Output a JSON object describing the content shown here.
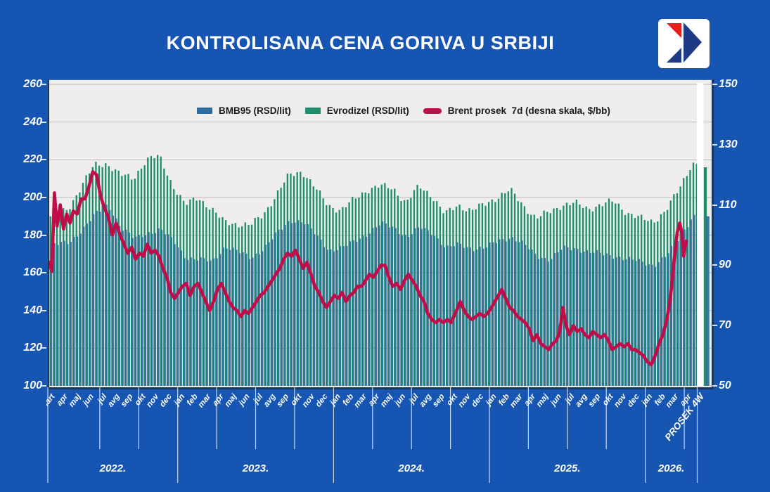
{
  "title": "KONTROLISANA CENA GORIVA U SRBIJI",
  "colors": {
    "background": "#1655b2",
    "plot_background": "#f0eeec",
    "gridline": "#bcbbb9",
    "axis_border": "#17375e",
    "axis_text": "#ffffff",
    "legend_text": "#1a1a1a",
    "bmb95_blue": "#2e6b9e",
    "evrodizel_green": "#1d8e6c",
    "brent_red": "#c20b49",
    "logo_red": "#e32119",
    "logo_blue": "#1f3a85"
  },
  "legend": [
    {
      "label": "BMB95 (RSD/lit)",
      "swatch": "bar",
      "color": "#2e6b9e"
    },
    {
      "label": "Evrodizel (RSD/lit)",
      "swatch": "bar",
      "color": "#1d8e6c"
    },
    {
      "label": "Brent prosek  7d (desna skala, $/bb)",
      "swatch": "line",
      "color": "#c20b49"
    }
  ],
  "chart_data": {
    "type": "combo",
    "title": "KONTROLISANA CENA GORIVA U SRBIJI",
    "grid": true,
    "legend_position": "top",
    "left_axis": {
      "unit": "RSD/lit",
      "min": 100,
      "max": 260,
      "step": 20,
      "ticks": [
        260,
        240,
        220,
        200,
        180,
        160,
        140,
        120,
        100
      ]
    },
    "right_axis": {
      "unit": "$/bb",
      "min": 50,
      "max": 150,
      "step": 20,
      "ticks": [
        150,
        130,
        110,
        90,
        70,
        50
      ]
    },
    "categories": [
      "mart",
      "apr",
      "maj",
      "jun",
      "jul",
      "avg",
      "sep",
      "okt",
      "nov",
      "dec",
      "jan",
      "feb",
      "mar",
      "apr",
      "maj",
      "jun",
      "jul",
      "avg",
      "sep",
      "okt",
      "nov",
      "dec",
      "jan",
      "feb",
      "mar",
      "apr",
      "maj",
      "jun",
      "jul",
      "avg",
      "sep",
      "okt",
      "nov",
      "dec",
      "jan",
      "feb",
      "mar",
      "apr",
      "maj",
      "jun",
      "jul",
      "avg",
      "sep",
      "okt",
      "nov",
      "dec",
      "jan",
      "feb",
      "mar",
      "apr",
      "PROSEK 4W"
    ],
    "years": [
      {
        "label": "2022.",
        "from": 0,
        "to": 10
      },
      {
        "label": "2023.",
        "from": 10,
        "to": 22
      },
      {
        "label": "2024.",
        "from": 22,
        "to": 34
      },
      {
        "label": "2025.",
        "from": 34,
        "to": 46
      },
      {
        "label": "2026.",
        "from": 46,
        "to": 50
      }
    ],
    "series": [
      {
        "name": "BMB95 (RSD/lit)",
        "type": "bar",
        "axis": "left",
        "color": "#2e6b9e",
        "monthly_values": [
          175,
          176,
          183,
          191,
          196,
          184,
          178,
          181,
          183,
          177,
          168,
          167,
          166,
          174,
          171,
          168,
          173,
          181,
          188,
          187,
          180,
          172,
          173,
          177,
          181,
          186,
          184,
          179,
          184,
          181,
          173,
          175,
          173,
          173,
          177,
          179,
          175,
          169,
          167,
          173,
          173,
          171,
          170,
          169,
          167,
          166,
          164,
          169,
          179,
          190,
          190
        ]
      },
      {
        "name": "Evrodizel (RSD/lit)",
        "type": "bar",
        "axis": "left",
        "color": "#1d8e6c",
        "monthly_values": [
          190,
          194,
          206,
          217,
          218,
          212,
          210,
          220,
          222,
          207,
          196,
          200,
          194,
          187,
          186,
          185,
          191,
          201,
          212,
          214,
          205,
          196,
          193,
          199,
          204,
          206,
          205,
          197,
          206,
          201,
          191,
          196,
          193,
          196,
          200,
          204,
          196,
          189,
          192,
          196,
          197,
          194,
          196,
          198,
          192,
          189,
          187,
          193,
          204,
          218,
          216
        ]
      },
      {
        "name": "Brent prosek  7d (desna skala, $/bb)",
        "type": "line",
        "axis": "right",
        "color": "#c20b49",
        "points_month_usd": [
          [
            0.0,
            91
          ],
          [
            0.2,
            88
          ],
          [
            0.4,
            114
          ],
          [
            0.6,
            103
          ],
          [
            0.85,
            110
          ],
          [
            1.1,
            102
          ],
          [
            1.35,
            107
          ],
          [
            1.6,
            104
          ],
          [
            1.85,
            108
          ],
          [
            2.15,
            107
          ],
          [
            2.45,
            112
          ],
          [
            2.75,
            112
          ],
          [
            3.05,
            116
          ],
          [
            3.35,
            121
          ],
          [
            3.65,
            120
          ],
          [
            3.95,
            113
          ],
          [
            4.25,
            109
          ],
          [
            4.55,
            106
          ],
          [
            4.85,
            100
          ],
          [
            5.15,
            104
          ],
          [
            5.45,
            100
          ],
          [
            5.75,
            97
          ],
          [
            6.05,
            94
          ],
          [
            6.35,
            96
          ],
          [
            6.65,
            92
          ],
          [
            6.95,
            94
          ],
          [
            7.25,
            93
          ],
          [
            7.55,
            97
          ],
          [
            7.85,
            94
          ],
          [
            8.15,
            95
          ],
          [
            8.45,
            93
          ],
          [
            8.75,
            89
          ],
          [
            9.05,
            86
          ],
          [
            9.35,
            81
          ],
          [
            9.65,
            79
          ],
          [
            9.95,
            81
          ],
          [
            10.25,
            83
          ],
          [
            10.55,
            84
          ],
          [
            10.85,
            80
          ],
          [
            11.15,
            83
          ],
          [
            11.45,
            84
          ],
          [
            11.75,
            81
          ],
          [
            12.05,
            78
          ],
          [
            12.35,
            75
          ],
          [
            12.65,
            78
          ],
          [
            12.95,
            82
          ],
          [
            13.25,
            84
          ],
          [
            13.55,
            81
          ],
          [
            13.85,
            78
          ],
          [
            14.15,
            76
          ],
          [
            14.45,
            75
          ],
          [
            14.75,
            73
          ],
          [
            15.05,
            75
          ],
          [
            15.35,
            74
          ],
          [
            15.65,
            76
          ],
          [
            15.95,
            78
          ],
          [
            16.25,
            80
          ],
          [
            16.55,
            81
          ],
          [
            16.85,
            83
          ],
          [
            17.15,
            85
          ],
          [
            17.45,
            87
          ],
          [
            17.75,
            89
          ],
          [
            18.05,
            92
          ],
          [
            18.35,
            94
          ],
          [
            18.65,
            93
          ],
          [
            18.95,
            95
          ],
          [
            19.25,
            92
          ],
          [
            19.55,
            89
          ],
          [
            19.85,
            91
          ],
          [
            20.15,
            87
          ],
          [
            20.45,
            83
          ],
          [
            20.75,
            81
          ],
          [
            21.05,
            78
          ],
          [
            21.35,
            76
          ],
          [
            21.65,
            78
          ],
          [
            21.95,
            80
          ],
          [
            22.25,
            79
          ],
          [
            22.55,
            81
          ],
          [
            22.85,
            78
          ],
          [
            23.15,
            80
          ],
          [
            23.45,
            81
          ],
          [
            23.75,
            83
          ],
          [
            24.05,
            83
          ],
          [
            24.35,
            85
          ],
          [
            24.65,
            87
          ],
          [
            24.95,
            86
          ],
          [
            25.25,
            88
          ],
          [
            25.55,
            90
          ],
          [
            25.85,
            90
          ],
          [
            26.15,
            86
          ],
          [
            26.45,
            83
          ],
          [
            26.75,
            84
          ],
          [
            27.05,
            82
          ],
          [
            27.35,
            85
          ],
          [
            27.65,
            87
          ],
          [
            27.95,
            85
          ],
          [
            28.25,
            83
          ],
          [
            28.55,
            80
          ],
          [
            28.85,
            78
          ],
          [
            29.15,
            74
          ],
          [
            29.45,
            72
          ],
          [
            29.75,
            71
          ],
          [
            30.05,
            72
          ],
          [
            30.35,
            71
          ],
          [
            30.65,
            72
          ],
          [
            30.95,
            71
          ],
          [
            31.25,
            74
          ],
          [
            31.65,
            78
          ],
          [
            31.95,
            75
          ],
          [
            32.25,
            73
          ],
          [
            32.55,
            72
          ],
          [
            32.85,
            73
          ],
          [
            33.15,
            74
          ],
          [
            33.45,
            73
          ],
          [
            33.75,
            74
          ],
          [
            34.05,
            76
          ],
          [
            34.45,
            79
          ],
          [
            34.85,
            82
          ],
          [
            35.15,
            79
          ],
          [
            35.45,
            76
          ],
          [
            35.75,
            75
          ],
          [
            36.05,
            73
          ],
          [
            36.35,
            72
          ],
          [
            36.65,
            71
          ],
          [
            36.95,
            69
          ],
          [
            37.25,
            65
          ],
          [
            37.55,
            67
          ],
          [
            37.85,
            64
          ],
          [
            38.15,
            63
          ],
          [
            38.45,
            62
          ],
          [
            38.75,
            64
          ],
          [
            39.05,
            65
          ],
          [
            39.3,
            68
          ],
          [
            39.55,
            76
          ],
          [
            39.8,
            70
          ],
          [
            40.05,
            67
          ],
          [
            40.35,
            70
          ],
          [
            40.65,
            68
          ],
          [
            40.95,
            69
          ],
          [
            41.25,
            67
          ],
          [
            41.55,
            66
          ],
          [
            41.85,
            68
          ],
          [
            42.15,
            67
          ],
          [
            42.45,
            66
          ],
          [
            42.75,
            67
          ],
          [
            43.05,
            65
          ],
          [
            43.35,
            62
          ],
          [
            43.65,
            63
          ],
          [
            43.95,
            64
          ],
          [
            44.25,
            63
          ],
          [
            44.55,
            64
          ],
          [
            44.85,
            62
          ],
          [
            45.15,
            62
          ],
          [
            45.45,
            61
          ],
          [
            45.75,
            60
          ],
          [
            46.05,
            58
          ],
          [
            46.35,
            57
          ],
          [
            46.65,
            60
          ],
          [
            46.95,
            64
          ],
          [
            47.25,
            67
          ],
          [
            47.55,
            72
          ],
          [
            47.85,
            80
          ],
          [
            48.1,
            91
          ],
          [
            48.35,
            101
          ],
          [
            48.55,
            104
          ],
          [
            48.7,
            101
          ],
          [
            48.85,
            93
          ],
          [
            48.95,
            96
          ],
          [
            49.05,
            98
          ]
        ]
      }
    ]
  }
}
